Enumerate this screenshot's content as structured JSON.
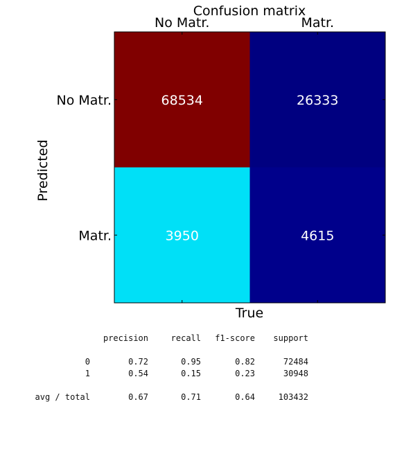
{
  "chart_data": {
    "type": "heatmap",
    "title": "Confusion matrix",
    "xlabel": "True",
    "ylabel": "Predicted",
    "x_categories": [
      "No Matr.",
      "Matr."
    ],
    "y_categories": [
      "No Matr.",
      "Matr."
    ],
    "values": [
      [
        68534,
        26333
      ],
      [
        3950,
        4615
      ]
    ],
    "colormap": "jet",
    "grid": false,
    "colors": {
      "cell_0_0": "#800000",
      "cell_0_1": "#000080",
      "cell_1_0": "#00e0f7",
      "cell_1_1": "#00008b",
      "annotation_text": "#ffffff"
    }
  },
  "report": {
    "headers": [
      "precision",
      "recall",
      "f1-score",
      "support"
    ],
    "rows": [
      {
        "label": "0",
        "precision": "0.72",
        "recall": "0.95",
        "f1": "0.82",
        "support": "72484"
      },
      {
        "label": "1",
        "precision": "0.54",
        "recall": "0.15",
        "f1": "0.23",
        "support": "30948"
      }
    ],
    "avg": {
      "label": "avg / total",
      "precision": "0.67",
      "recall": "0.71",
      "f1": "0.64",
      "support": "103432"
    }
  }
}
